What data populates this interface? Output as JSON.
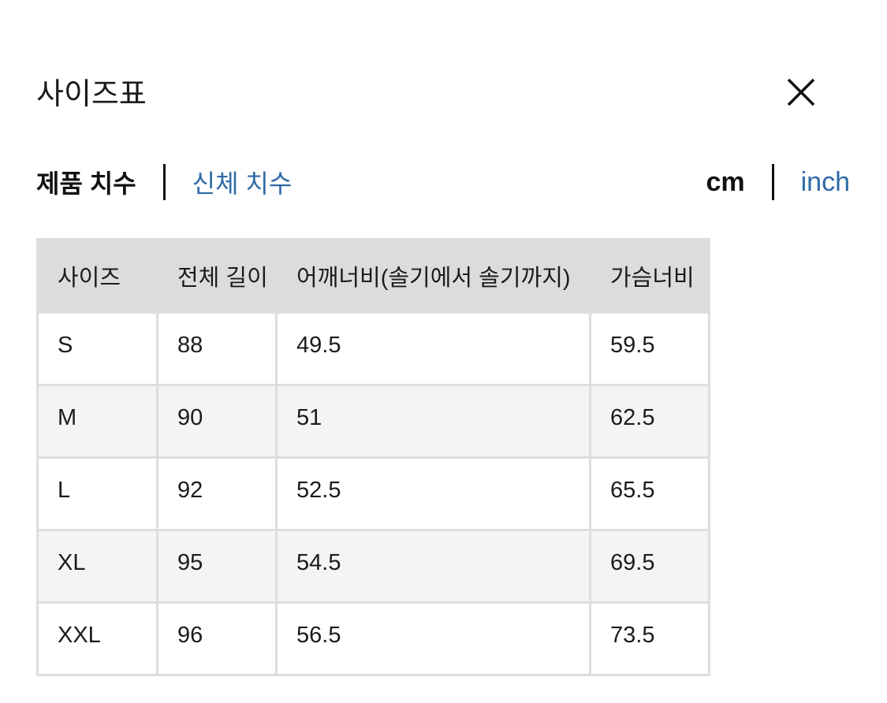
{
  "header": {
    "title": "사이즈표",
    "close_icon": "close-icon"
  },
  "tabs": [
    {
      "label": "제품 치수",
      "active": true
    },
    {
      "label": "신체 치수",
      "active": false
    }
  ],
  "units": [
    {
      "label": "cm",
      "active": true
    },
    {
      "label": "inch",
      "active": false
    }
  ],
  "colors": {
    "link": "#2f6aa6",
    "header_bg": "#dcdcdc",
    "alt_row_bg": "#f4f4f4"
  },
  "table": {
    "columns": [
      "사이즈",
      "전체 길이",
      "어깨너비(솔기에서 솔기까지)",
      "가슴너비"
    ],
    "rows": [
      [
        "S",
        "88",
        "49.5",
        "59.5"
      ],
      [
        "M",
        "90",
        "51",
        "62.5"
      ],
      [
        "L",
        "92",
        "52.5",
        "65.5"
      ],
      [
        "XL",
        "95",
        "54.5",
        "69.5"
      ],
      [
        "XXL",
        "96",
        "56.5",
        "73.5"
      ]
    ]
  }
}
